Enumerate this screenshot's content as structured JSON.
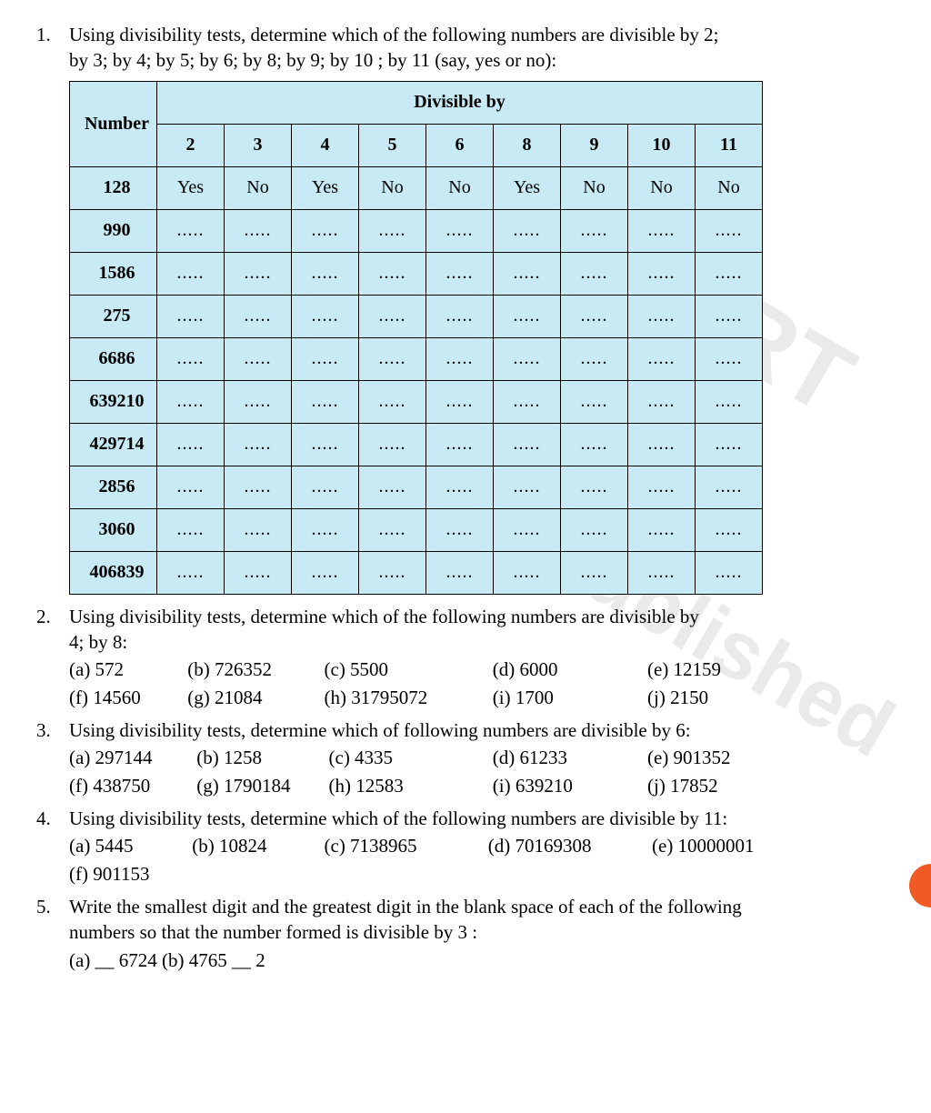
{
  "q1": {
    "num": "1.",
    "text_line1": "Using divisibility tests, determine which of the following numbers are divisible by 2;",
    "text_line2": "by 3; by 4; by 5; by 6; by 8; by 9; by 10 ; by 11 (say, yes or no):",
    "table": {
      "corner": "Number",
      "divisible_by": "Divisible by",
      "divisors": [
        "2",
        "3",
        "4",
        "5",
        "6",
        "8",
        "9",
        "10",
        "11"
      ],
      "rows": [
        {
          "n": "128",
          "v": [
            "Yes",
            "No",
            "Yes",
            "No",
            "No",
            "Yes",
            "No",
            "No",
            "No"
          ]
        },
        {
          "n": "990",
          "v": [
            ".....",
            ".....",
            ".....",
            ".....",
            ".....",
            ".....",
            ".....",
            ".....",
            "....."
          ]
        },
        {
          "n": "1586",
          "v": [
            ".....",
            ".....",
            ".....",
            ".....",
            ".....",
            ".....",
            ".....",
            ".....",
            "....."
          ]
        },
        {
          "n": "275",
          "v": [
            ".....",
            ".....",
            ".....",
            ".....",
            ".....",
            ".....",
            ".....",
            ".....",
            "....."
          ]
        },
        {
          "n": "6686",
          "v": [
            ".....",
            ".....",
            ".....",
            ".....",
            ".....",
            ".....",
            ".....",
            ".....",
            "....."
          ]
        },
        {
          "n": "639210",
          "v": [
            ".....",
            ".....",
            ".....",
            ".....",
            ".....",
            ".....",
            ".....",
            ".....",
            "....."
          ]
        },
        {
          "n": "429714",
          "v": [
            ".....",
            ".....",
            ".....",
            ".....",
            ".....",
            ".....",
            ".....",
            ".....",
            "....."
          ]
        },
        {
          "n": "2856",
          "v": [
            ".....",
            ".....",
            ".....",
            ".....",
            ".....",
            ".....",
            ".....",
            ".....",
            "....."
          ]
        },
        {
          "n": "3060",
          "v": [
            ".....",
            ".....",
            ".....",
            ".....",
            ".....",
            ".....",
            ".....",
            ".....",
            "....."
          ]
        },
        {
          "n": "406839",
          "v": [
            ".....",
            ".....",
            ".....",
            ".....",
            ".....",
            ".....",
            ".....",
            ".....",
            "....."
          ]
        }
      ],
      "bg_color": "#c7eaf4",
      "border_color": "#000000"
    }
  },
  "q2": {
    "num": "2.",
    "text_line1": "Using divisibility tests, determine which of the following numbers are divisible by",
    "text_line2": "4; by 8:",
    "options_row1": [
      "(a) 572",
      "(b) 726352",
      "(c) 5500",
      "(d)  6000",
      "(e)  12159"
    ],
    "options_row2": [
      "(f)  14560",
      "(g) 21084",
      "(h) 31795072",
      "(i)   1700",
      "(j)  2150"
    ]
  },
  "q3": {
    "num": "3.",
    "text": "Using divisibility tests, determine which of following numbers are divisible by 6:",
    "options_row1": [
      "(a) 297144",
      "(b) 1258",
      "(c)  4335",
      "(d)  61233",
      "(e)  901352"
    ],
    "options_row2": [
      "(f)  438750",
      "(g) 1790184",
      "(h)  12583",
      "(i)   639210",
      "(j)  17852"
    ]
  },
  "q4": {
    "num": "4.",
    "text": "Using divisibility tests, determine which of the following numbers are divisible by 11:",
    "options_row1": [
      "(a) 5445",
      "(b) 10824",
      "(c)  7138965",
      "(d)  70169308",
      "(e)  10000001"
    ],
    "options_row2_single": "(f)  901153"
  },
  "q5": {
    "num": "5.",
    "text_line1": "Write the smallest digit and the greatest digit in the blank space of each of the following",
    "text_line2": "numbers so that the number formed is divisible by 3 :",
    "options_single": "(a)  __ 6724   (b) 4765 __ 2"
  },
  "watermarks": {
    "top": "© NCERT",
    "bottom": "not to be republished"
  },
  "accent_color": "#f15a22"
}
